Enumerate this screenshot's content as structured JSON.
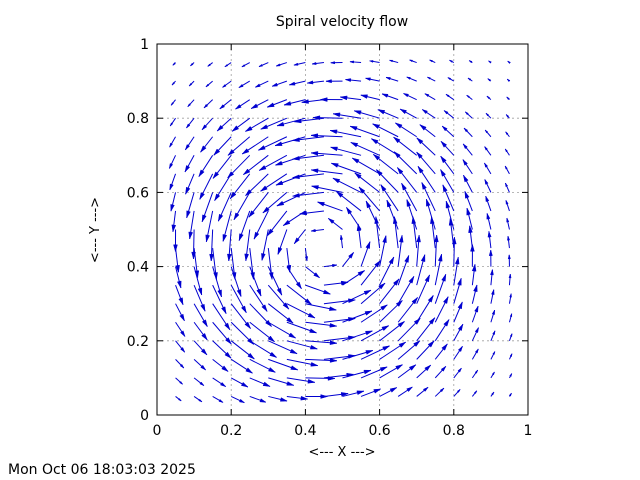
{
  "chart_data": {
    "type": "vector-field",
    "title": "Spiral velocity flow",
    "xlabel": "<--- X --->",
    "ylabel": "<--- Y --->",
    "xlim": [
      0,
      1
    ],
    "ylim": [
      0,
      1
    ],
    "xticks": [
      "0",
      "0.2",
      "0.4",
      "0.6",
      "0.8",
      "1"
    ],
    "yticks": [
      "0",
      "0.2",
      "0.4",
      "0.6",
      "0.8",
      "1"
    ],
    "grid": true,
    "legend": "none",
    "series_color": "#0000d0",
    "grid_points": {
      "x_start": 0.05,
      "x_end": 0.95,
      "x_step": 0.05,
      "y_start": 0.05,
      "y_end": 0.95,
      "y_step": 0.05
    },
    "field": {
      "center": [
        0.45,
        0.45
      ],
      "rotation": "counter-clockwise",
      "scale": 0.05
    }
  },
  "timestamp": "Mon Oct 06 18:03:03 2025"
}
